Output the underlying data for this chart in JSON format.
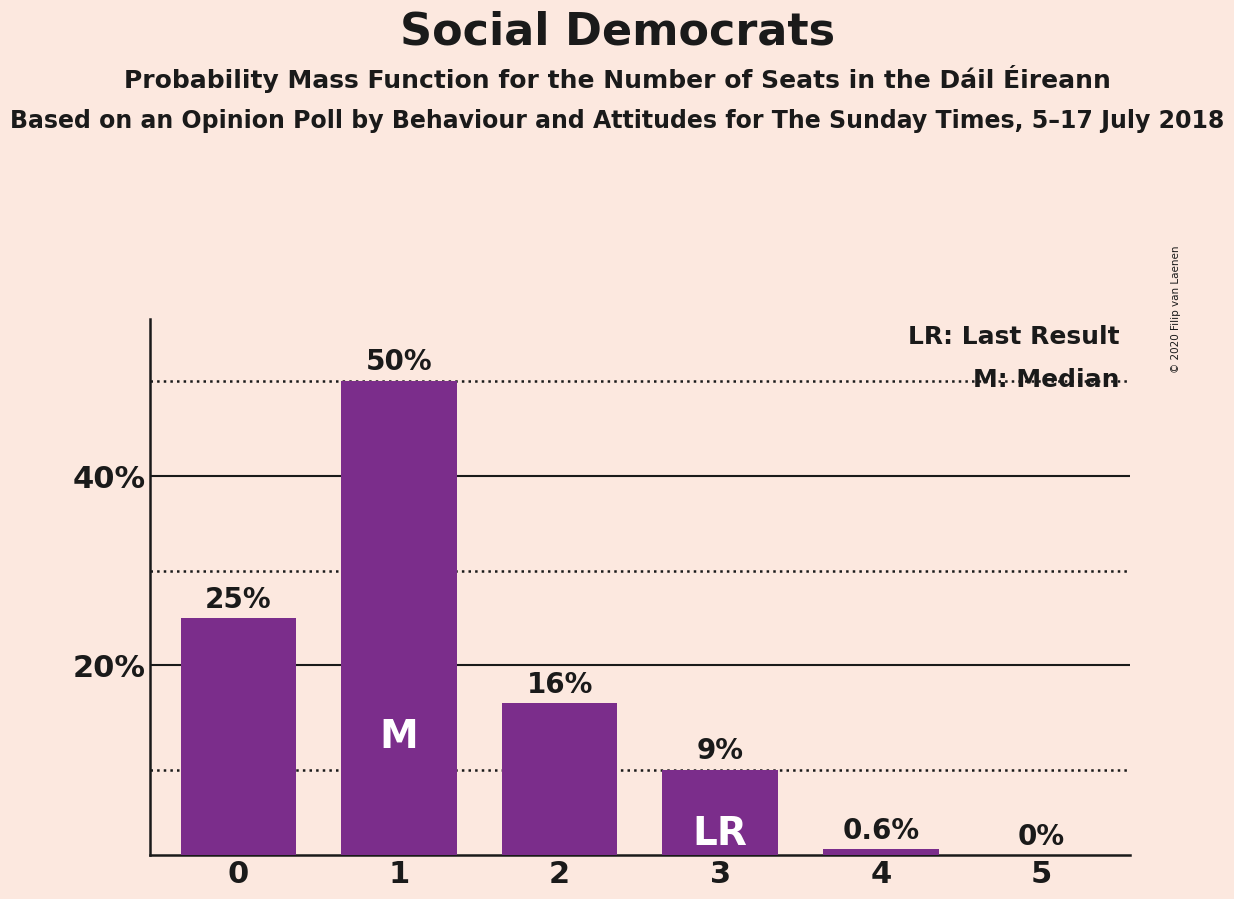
{
  "title": "Social Democrats",
  "subtitle": "Probability Mass Function for the Number of Seats in the Dáil Éireann",
  "source_line": "Based on an Opinion Poll by Behaviour and Attitudes for The Sunday Times, 5–17 July 2018",
  "copyright": "© 2020 Filip van Laenen",
  "categories": [
    0,
    1,
    2,
    3,
    4,
    5
  ],
  "values": [
    0.25,
    0.5,
    0.16,
    0.09,
    0.006,
    0.0
  ],
  "bar_color": "#7b2d8b",
  "background_color": "#fce8df",
  "ytick_labels": [
    "20%",
    "40%"
  ],
  "ytick_values": [
    0.2,
    0.4
  ],
  "dotted_lines": [
    0.5,
    0.3,
    0.09
  ],
  "solid_lines": [
    0.2,
    0.4
  ],
  "legend_lr": "LR: Last Result",
  "legend_m": "M: Median",
  "bar_labels": [
    "25%",
    "50%",
    "16%",
    "9%",
    "0.6%",
    "0%"
  ],
  "label_inside_bars": [
    1,
    3
  ],
  "label_inside_text": [
    "M",
    "LR"
  ],
  "ylim": [
    0,
    0.565
  ],
  "title_fontsize": 32,
  "subtitle_fontsize": 18,
  "source_fontsize": 17,
  "bar_width": 0.72
}
